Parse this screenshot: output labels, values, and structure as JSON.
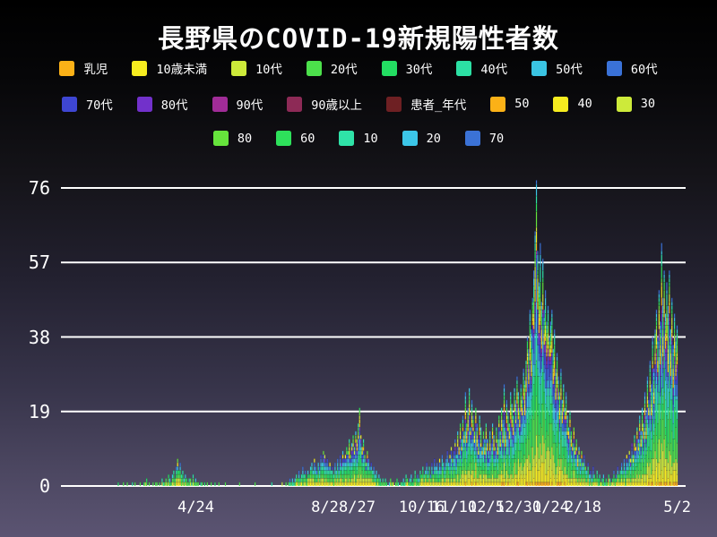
{
  "header": {
    "title": "長野県のCOVID-19新規陽性者数"
  },
  "chart_data": {
    "type": "bar",
    "stacked": true,
    "title": "長野県のCOVID-19新規陽性者数",
    "ylabel": "",
    "xlabel": "",
    "ylim": [
      0,
      80
    ],
    "yticks": [
      0,
      19,
      38,
      57,
      76
    ],
    "grid": "horizontal",
    "grid_color": "#ffffff",
    "legend_position": "top",
    "background": {
      "top": "#000000",
      "bottom": "#5b5472"
    },
    "legend_rows": [
      [
        {
          "label": "乳児",
          "color": "#fbb117"
        },
        {
          "label": "10歳未満",
          "color": "#f6ec1f"
        },
        {
          "label": "10代",
          "color": "#cdea3a"
        },
        {
          "label": "20代",
          "color": "#4ce04b"
        },
        {
          "label": "30代",
          "color": "#23dd62"
        },
        {
          "label": "40代",
          "color": "#2ce0a4"
        },
        {
          "label": "50代",
          "color": "#3ac4e2"
        },
        {
          "label": "60代",
          "color": "#3a72d8"
        }
      ],
      [
        {
          "label": "70代",
          "color": "#3e46d2"
        },
        {
          "label": "80代",
          "color": "#7231cb"
        },
        {
          "label": "90代",
          "color": "#a02c97"
        },
        {
          "label": "90歳以上",
          "color": "#8d2a56"
        },
        {
          "label": "患者_年代",
          "color": "#6e2023"
        },
        {
          "label": "50",
          "color": "#fbb117"
        },
        {
          "label": "40",
          "color": "#f6ec1f"
        },
        {
          "label": "30",
          "color": "#cdea3a"
        }
      ],
      [
        {
          "label": "80",
          "color": "#66e43c"
        },
        {
          "label": "60",
          "color": "#2ee15b"
        },
        {
          "label": "10",
          "color": "#2fe3a8"
        },
        {
          "label": "20",
          "color": "#3cc6e8"
        },
        {
          "label": "70",
          "color": "#3b72d6"
        }
      ]
    ],
    "x_ticks": [
      {
        "label": "4/24",
        "day": 104
      },
      {
        "label": "8/2",
        "day": 204
      },
      {
        "label": "8/27",
        "day": 229
      },
      {
        "label": "10/16",
        "day": 279
      },
      {
        "label": "11/10",
        "day": 304
      },
      {
        "label": "12/5",
        "day": 329
      },
      {
        "label": "12/30",
        "day": 354
      },
      {
        "label": "1/24",
        "day": 379
      },
      {
        "label": "2/18",
        "day": 404
      },
      {
        "label": "5/2",
        "day": 477
      }
    ],
    "x_unit": "daily bars by date; day index 0..483, labeled ticks above, last data day = 5/2",
    "age_split_weights": [
      0.3,
      1.2,
      1.5,
      2.2,
      1.8,
      1.6,
      1.3,
      1.0,
      0.8,
      0.5,
      0.25,
      0.12,
      0.08,
      0.5,
      0.6,
      0.5,
      0.6,
      0.5,
      0.5,
      0.45,
      0.4
    ],
    "daily_totals": [
      0,
      0,
      0,
      0,
      0,
      0,
      0,
      0,
      0,
      0,
      0,
      0,
      0,
      0,
      0,
      0,
      0,
      0,
      0,
      0,
      0,
      0,
      0,
      0,
      0,
      0,
      0,
      0,
      0,
      0,
      0,
      0,
      0,
      0,
      0,
      0,
      0,
      0,
      0,
      0,
      0,
      0,
      0,
      0,
      1,
      0,
      0,
      0,
      1,
      0,
      0,
      1,
      0,
      0,
      0,
      1,
      0,
      1,
      0,
      0,
      0,
      1,
      0,
      0,
      1,
      1,
      2,
      0,
      1,
      0,
      0,
      1,
      0,
      1,
      1,
      0,
      1,
      0,
      2,
      1,
      1,
      2,
      1,
      3,
      2,
      1,
      3,
      4,
      2,
      5,
      7,
      4,
      6,
      3,
      4,
      2,
      3,
      2,
      1,
      2,
      2,
      1,
      3,
      1,
      2,
      1,
      1,
      0,
      1,
      1,
      0,
      1,
      0,
      1,
      0,
      0,
      1,
      0,
      0,
      1,
      0,
      0,
      1,
      0,
      0,
      0,
      0,
      1,
      0,
      0,
      0,
      0,
      0,
      0,
      0,
      0,
      0,
      0,
      1,
      0,
      0,
      0,
      0,
      0,
      0,
      0,
      0,
      0,
      0,
      0,
      1,
      0,
      0,
      0,
      0,
      0,
      0,
      0,
      0,
      0,
      0,
      0,
      0,
      1,
      0,
      0,
      0,
      0,
      0,
      0,
      0,
      1,
      0,
      0,
      1,
      0,
      1,
      2,
      1,
      2,
      1,
      2,
      3,
      2,
      4,
      2,
      3,
      5,
      3,
      4,
      2,
      4,
      3,
      5,
      6,
      4,
      7,
      5,
      4,
      6,
      5,
      8,
      6,
      9,
      8,
      6,
      7,
      5,
      6,
      4,
      5,
      3,
      6,
      4,
      7,
      5,
      8,
      6,
      9,
      7,
      8,
      10,
      9,
      12,
      8,
      11,
      13,
      10,
      14,
      12,
      16,
      20,
      13,
      10,
      12,
      8,
      6,
      9,
      7,
      5,
      6,
      4,
      5,
      3,
      4,
      2,
      3,
      2,
      1,
      2,
      1,
      2,
      1,
      0,
      1,
      2,
      1,
      1,
      0,
      1,
      2,
      1,
      0,
      1,
      1,
      2,
      1,
      3,
      2,
      1,
      2,
      3,
      1,
      2,
      4,
      2,
      3,
      2,
      4,
      3,
      5,
      3,
      4,
      6,
      4,
      5,
      3,
      6,
      4,
      7,
      5,
      6,
      4,
      7,
      5,
      8,
      6,
      5,
      7,
      9,
      6,
      8,
      10,
      7,
      9,
      12,
      8,
      14,
      10,
      16,
      12,
      18,
      14,
      24,
      16,
      20,
      25,
      15,
      22,
      18,
      14,
      20,
      16,
      12,
      18,
      15,
      10,
      14,
      12,
      16,
      12,
      9,
      14,
      11,
      16,
      13,
      10,
      15,
      12,
      18,
      14,
      20,
      17,
      26,
      15,
      22,
      19,
      16,
      24,
      21,
      18,
      25,
      22,
      28,
      24,
      20,
      26,
      23,
      30,
      27,
      32,
      38,
      35,
      45,
      40,
      48,
      55,
      65,
      78,
      60,
      52,
      62,
      47,
      58,
      45,
      50,
      42,
      46,
      38,
      42,
      45,
      35,
      40,
      30,
      34,
      28,
      24,
      30,
      22,
      26,
      20,
      24,
      18,
      15,
      19,
      14,
      11,
      15,
      10,
      12,
      8,
      10,
      7,
      9,
      6,
      8,
      5,
      4,
      6,
      3,
      4,
      2,
      5,
      3,
      2,
      4,
      2,
      3,
      1,
      2,
      3,
      1,
      2,
      1,
      3,
      2,
      1,
      2,
      4,
      2,
      3,
      5,
      3,
      4,
      6,
      4,
      7,
      5,
      8,
      6,
      9,
      7,
      11,
      8,
      13,
      10,
      15,
      12,
      18,
      14,
      20,
      16,
      24,
      19,
      28,
      22,
      32,
      26,
      38,
      30,
      40,
      45,
      38,
      50,
      42,
      62,
      48,
      55,
      44,
      52,
      46,
      55,
      40,
      48,
      36,
      44,
      38,
      41,
      0,
      0,
      0,
      0,
      0,
      0
    ]
  }
}
